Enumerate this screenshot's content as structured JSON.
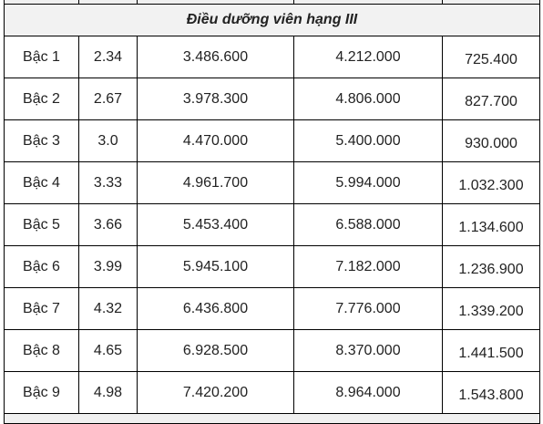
{
  "table": {
    "section_title": "Điều dưỡng viên hạng III",
    "rows": [
      [
        "Bậc 1",
        "2.34",
        "3.486.600",
        "4.212.000",
        "725.400"
      ],
      [
        "Bậc 2",
        "2.67",
        "3.978.300",
        "4.806.000",
        "827.700"
      ],
      [
        "Bậc 3",
        "3.0",
        "4.470.000",
        "5.400.000",
        "930.000"
      ],
      [
        "Bậc 4",
        "3.33",
        "4.961.700",
        "5.994.000",
        "1.032.300"
      ],
      [
        "Bậc 5",
        "3.66",
        "5.453.400",
        "6.588.000",
        "1.134.600"
      ],
      [
        "Bậc 6",
        "3.99",
        "5.945.100",
        "7.182.000",
        "1.236.900"
      ],
      [
        "Bậc 7",
        "4.32",
        "6.436.800",
        "7.776.000",
        "1.339.200"
      ],
      [
        "Bậc 8",
        "4.65",
        "6.928.500",
        "8.370.000",
        "1.441.500"
      ],
      [
        "Bậc 9",
        "4.98",
        "7.420.200",
        "8.964.000",
        "1.543.800"
      ]
    ]
  }
}
